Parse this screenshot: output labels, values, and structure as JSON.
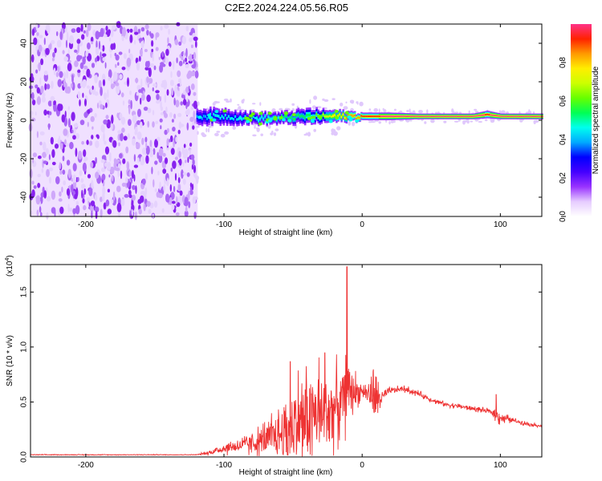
{
  "title": "C2E2.2024.224.05.56.R05",
  "chart_data": [
    {
      "type": "heatmap",
      "name": "spectrogram",
      "xlabel": "Height of straight line (km)",
      "ylabel": "Frequency (Hz)",
      "xlim": [
        -240,
        130
      ],
      "ylim": [
        -50,
        50
      ],
      "xticks": [
        -200,
        -100,
        0,
        100
      ],
      "yticks": [
        40,
        20,
        0,
        -20,
        -40
      ],
      "noise_region_x": [
        -240,
        -119
      ],
      "signal_band": {
        "x": [
          -120,
          -100,
          -80,
          -60,
          -40,
          -20,
          0,
          20,
          40,
          60,
          80,
          90,
          100,
          110,
          130
        ],
        "center_hz": [
          2,
          2,
          1,
          1,
          2,
          2,
          2,
          2,
          2,
          2,
          2,
          3,
          2,
          2,
          2
        ],
        "halfwidth_hz": [
          4,
          4,
          3,
          3,
          4,
          3,
          2,
          2,
          1.5,
          1.5,
          1.5,
          2,
          1.5,
          1.5,
          1.5
        ],
        "amplitude": [
          0.35,
          0.4,
          0.4,
          0.45,
          0.5,
          0.7,
          0.85,
          0.95,
          0.95,
          0.95,
          0.95,
          0.9,
          0.95,
          0.95,
          0.95
        ]
      },
      "colorbar": {
        "label": "Normalized spectral amplitude",
        "range": [
          0,
          1
        ],
        "ticks": [
          "0.0",
          "0.2",
          "0.4",
          "0.6",
          "0.8"
        ],
        "colors": [
          "#ffffff",
          "#e6ccff",
          "#9933ff",
          "#4400ff",
          "#0000ff",
          "#00aaff",
          "#00ffee",
          "#00ff55",
          "#66ff00",
          "#ccff00",
          "#ffee00",
          "#ff9900",
          "#ff2200",
          "#ff3388"
        ]
      }
    },
    {
      "type": "line",
      "name": "snr",
      "xlabel": "Height of straight line (km)",
      "ylabel": "SNR (10 * v/v)",
      "scale_label": "(x10",
      "scale_exp": "4",
      "scale_close": ")",
      "xlim": [
        -240,
        130
      ],
      "ylim": [
        0,
        1.75
      ],
      "xticks": [
        -200,
        -100,
        0,
        100
      ],
      "yticks": [
        "0.0",
        "0.5",
        "1.0",
        "1.5"
      ],
      "color": "#ee3333",
      "envelope": {
        "x": [
          -240,
          -120,
          -110,
          -100,
          -90,
          -80,
          -70,
          -60,
          -55,
          -50,
          -45,
          -40,
          -35,
          -30,
          -25,
          -20,
          -15,
          -12,
          -10,
          -8,
          -5,
          0,
          5,
          8,
          10,
          15,
          20,
          30,
          40,
          50,
          60,
          70,
          80,
          90,
          95,
          98,
          100,
          110,
          120,
          130
        ],
        "mean": [
          0.02,
          0.02,
          0.04,
          0.08,
          0.1,
          0.12,
          0.15,
          0.2,
          0.25,
          0.28,
          0.32,
          0.35,
          0.38,
          0.4,
          0.42,
          0.45,
          0.5,
          0.55,
          0.6,
          0.6,
          0.6,
          0.6,
          0.58,
          0.55,
          0.52,
          0.55,
          0.6,
          0.62,
          0.58,
          0.52,
          0.48,
          0.46,
          0.44,
          0.42,
          0.4,
          0.38,
          0.36,
          0.33,
          0.3,
          0.28
        ],
        "noise": [
          0.003,
          0.003,
          0.02,
          0.05,
          0.06,
          0.1,
          0.15,
          0.25,
          0.35,
          0.4,
          0.4,
          0.45,
          0.45,
          0.42,
          0.4,
          0.35,
          0.3,
          0.3,
          0.3,
          0.25,
          0.15,
          0.05,
          0.1,
          0.2,
          0.2,
          0.05,
          0.03,
          0.025,
          0.025,
          0.02,
          0.02,
          0.02,
          0.02,
          0.02,
          0.03,
          0.08,
          0.05,
          0.02,
          0.015,
          0.01
        ]
      },
      "peaks": [
        {
          "x": -11,
          "y": 1.73
        },
        {
          "x": -27,
          "y": 0.95
        },
        {
          "x": -52,
          "y": 0.87
        },
        {
          "x": 8,
          "y": 0.78
        },
        {
          "x": 97,
          "y": 0.57
        }
      ]
    }
  ]
}
